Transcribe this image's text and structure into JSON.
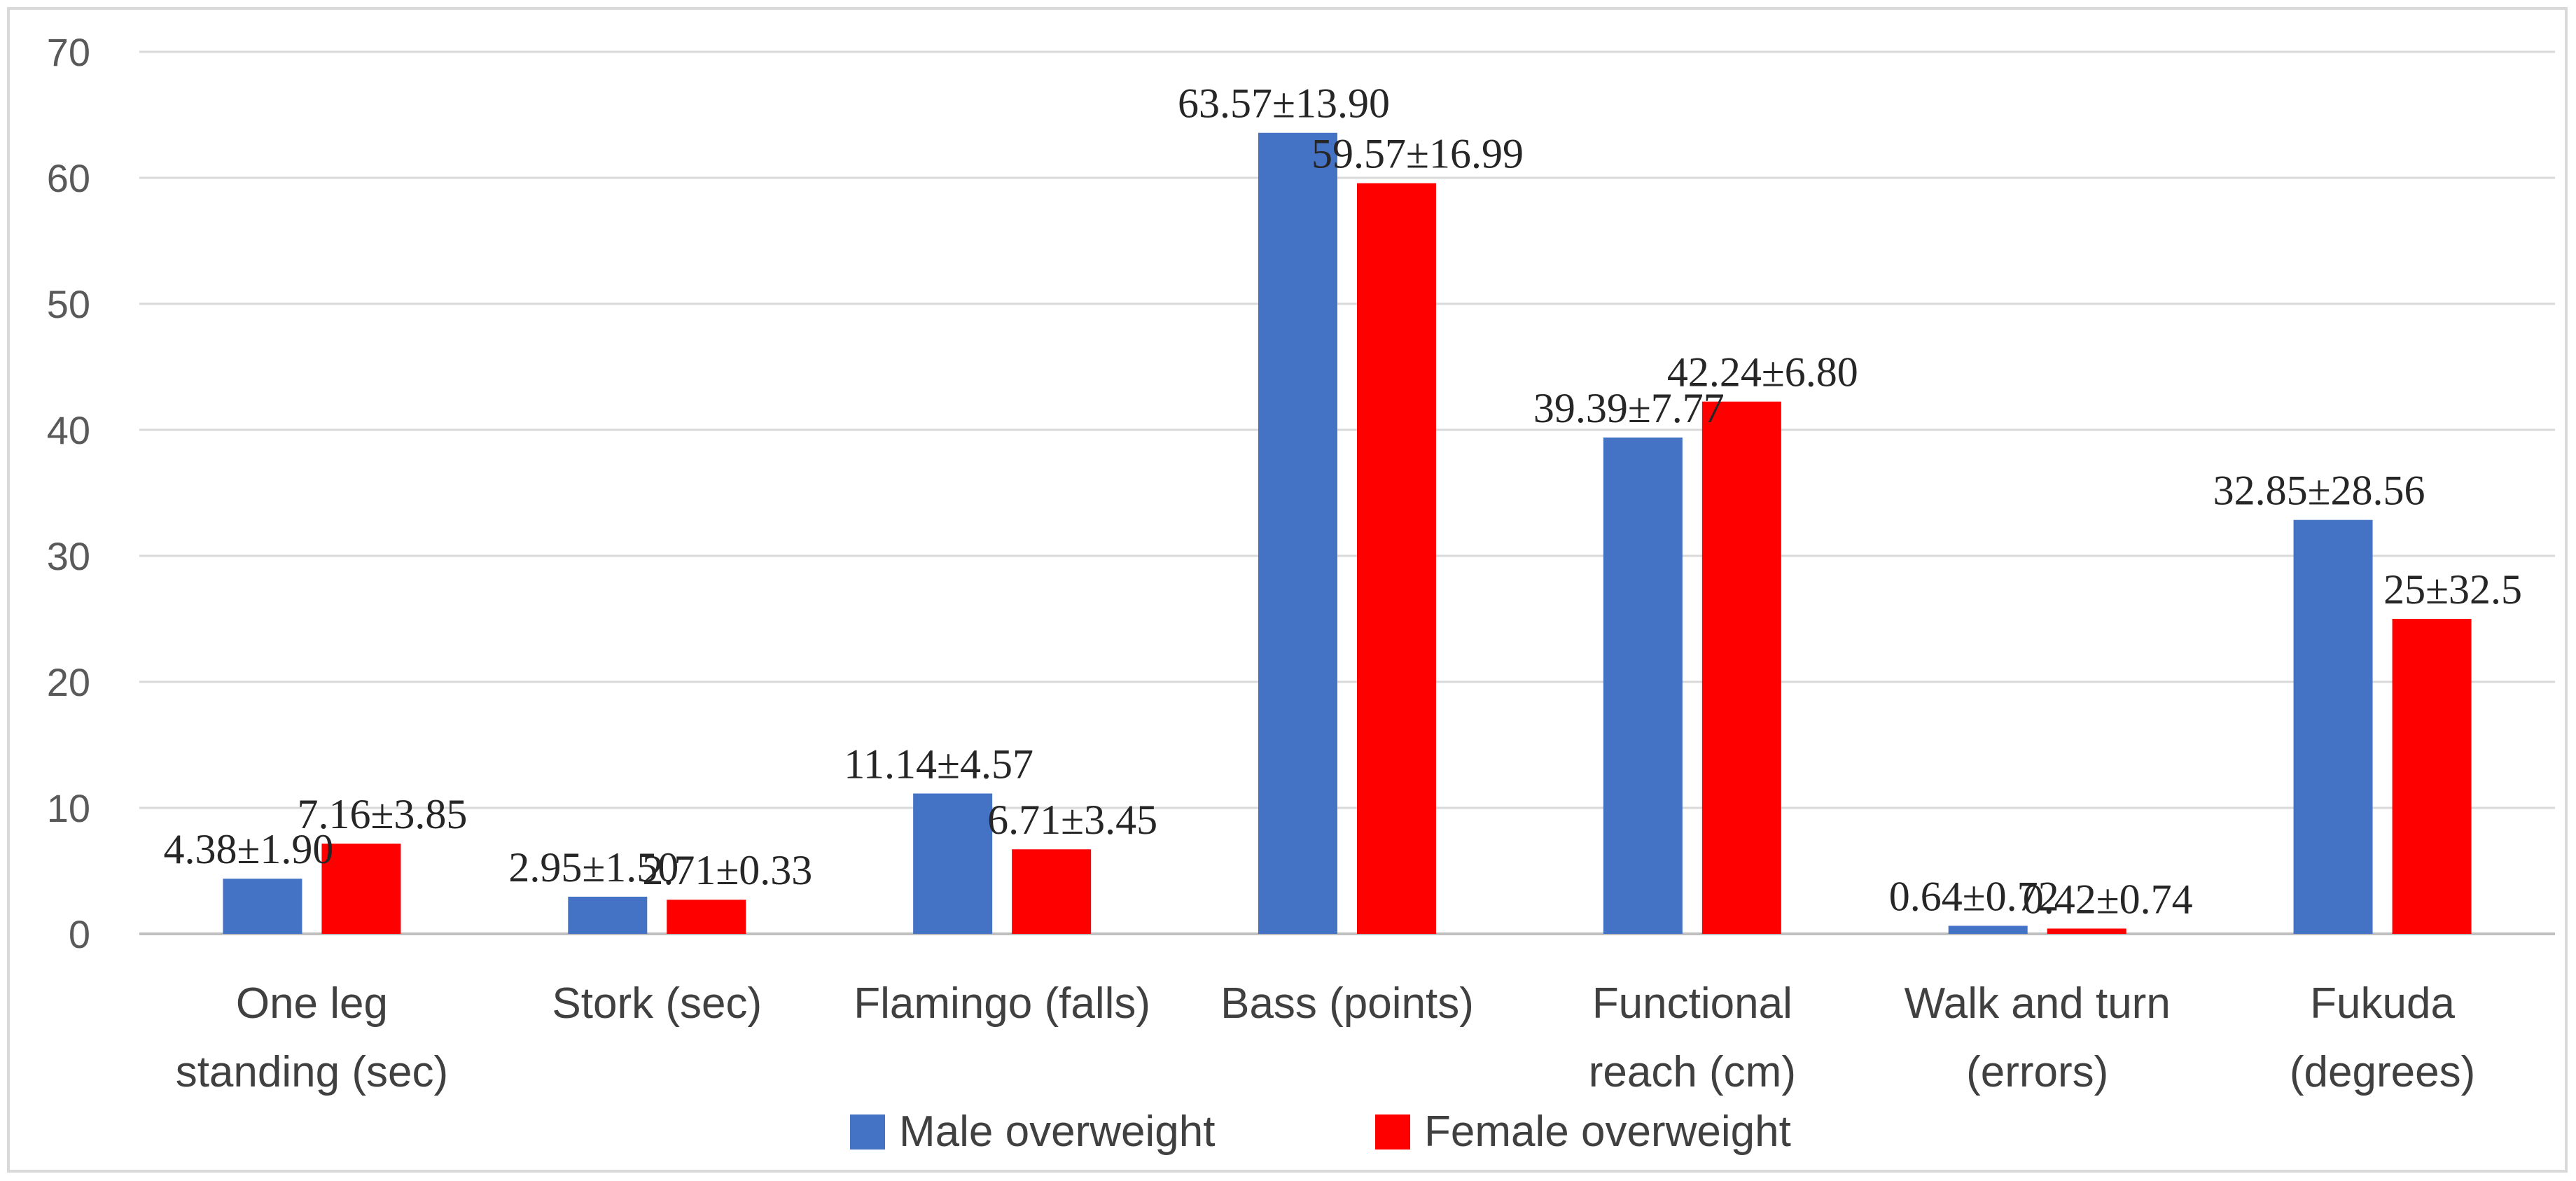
{
  "chart_data": {
    "type": "bar",
    "title": "",
    "xlabel": "",
    "ylabel": "",
    "ylim": [
      0,
      70
    ],
    "yticks": [
      0,
      10,
      20,
      30,
      40,
      50,
      60,
      70
    ],
    "grid": true,
    "legend_position": "bottom",
    "categories": [
      [
        "One leg",
        "standing (sec)"
      ],
      [
        "Stork (sec)"
      ],
      [
        "Flamingo (falls)"
      ],
      [
        "Bass (points)"
      ],
      [
        "Functional",
        "reach (cm)"
      ],
      [
        "Walk and turn",
        "(errors)"
      ],
      [
        "Fukuda",
        "(degrees)"
      ]
    ],
    "series": [
      {
        "name": "Male overweight",
        "color": "#4472C4",
        "values": [
          4.38,
          2.95,
          11.14,
          63.57,
          39.39,
          0.64,
          32.85
        ],
        "labels": [
          "4.38±1.90",
          "2.95±1.50",
          "11.14±4.57",
          "63.57±13.90",
          "39.39±7.77",
          "0.64±0.72",
          "32.85±28.56"
        ]
      },
      {
        "name": "Female overweight",
        "color": "#FF0000",
        "values": [
          7.16,
          2.71,
          6.71,
          59.57,
          42.24,
          0.42,
          25
        ],
        "labels": [
          "7.16±3.85",
          "2.71±0.33",
          "6.71±3.45",
          "59.57±16.99",
          "42.24±6.80",
          "0.42±0.74",
          "25±32.5"
        ]
      }
    ]
  }
}
